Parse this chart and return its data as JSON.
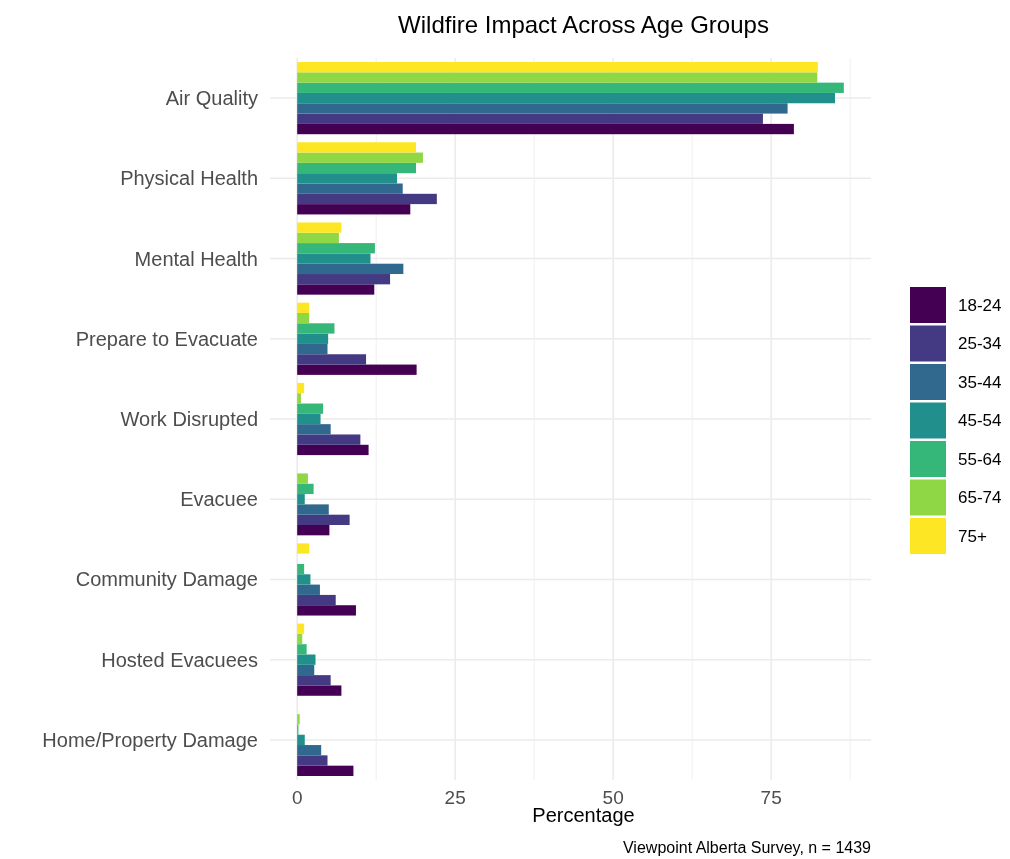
{
  "chart_data": {
    "type": "bar",
    "orientation": "horizontal",
    "title": "Wildfire Impact Across Age Groups",
    "xlabel": "Percentage",
    "legend": "right",
    "grid": true,
    "categories": [
      "Air Quality",
      "Physical Health",
      "Mental Health",
      "Prepare to Evacuate",
      "Work Disrupted",
      "Evacuee",
      "Community Damage",
      "Hosted Evacuees",
      "Home/Property Damage"
    ],
    "xlim": [
      -4.3,
      90.8
    ],
    "xticks": [
      0,
      {
        "value": 12.5,
        "label": null
      },
      25,
      {
        "value": 37.5,
        "label": null
      },
      50,
      {
        "value": 62.5,
        "label": null
      },
      75,
      {
        "value": 87.5,
        "label": null
      }
    ],
    "series": [
      {
        "name": "18-24",
        "color": "#440154",
        "values": [
          78.6,
          17.9,
          12.2,
          18.9,
          11.3,
          5.1,
          9.3,
          7.0,
          8.9
        ]
      },
      {
        "name": "25-34",
        "color": "#443a83",
        "values": [
          73.7,
          22.1,
          14.7,
          10.9,
          10.0,
          8.3,
          6.1,
          5.3,
          4.8
        ]
      },
      {
        "name": "35-44",
        "color": "#31688e",
        "values": [
          77.6,
          16.7,
          16.8,
          4.8,
          5.3,
          5.0,
          3.6,
          2.7,
          3.8
        ]
      },
      {
        "name": "45-54",
        "color": "#21908d",
        "values": [
          85.1,
          15.8,
          11.6,
          4.9,
          3.7,
          1.2,
          2.1,
          2.9,
          1.2
        ]
      },
      {
        "name": "55-64",
        "color": "#35b779",
        "values": [
          86.5,
          18.8,
          12.3,
          5.9,
          4.1,
          2.6,
          1.1,
          1.5,
          0.2
        ]
      },
      {
        "name": "65-74",
        "color": "#8fd744",
        "values": [
          82.3,
          19.9,
          6.6,
          1.9,
          0.6,
          1.7,
          0,
          0.8,
          0.4
        ]
      },
      {
        "name": "75+",
        "color": "#fde725",
        "values": [
          82.4,
          18.8,
          7.0,
          1.9,
          1.1,
          0,
          1.9,
          1.1,
          0
        ]
      }
    ],
    "annotations": [
      "Viewpoint Alberta Survey, n = 1439"
    ]
  }
}
